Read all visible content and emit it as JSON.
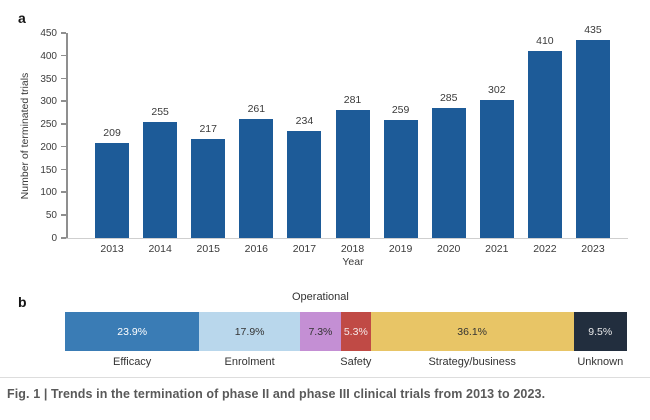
{
  "figure": {
    "panel_a_label": "a",
    "panel_b_label": "b",
    "caption": "Fig. 1 | Trends in the termination of phase II and phase III clinical trials from 2013 to 2023."
  },
  "colors": {
    "panel_a_bar": "#1d5b98",
    "axis_line": "#8f8f8f",
    "baseline": "#cfcfcf",
    "caption_text": "#595959"
  },
  "chart_data": [
    {
      "type": "bar",
      "categories": [
        "2013",
        "2014",
        "2015",
        "2016",
        "2017",
        "2018",
        "2019",
        "2020",
        "2021",
        "2022",
        "2023"
      ],
      "values": [
        209,
        255,
        217,
        261,
        234,
        281,
        259,
        285,
        302,
        410,
        435
      ],
      "title": "",
      "xlabel": "Year",
      "ylabel": "Number of terminated trials",
      "ylim": [
        0,
        450
      ],
      "ytick_step": 50,
      "grid": false,
      "bar_color": "#1d5b98"
    },
    {
      "type": "stacked-bar",
      "orientation": "horizontal",
      "total": 100,
      "segments": [
        {
          "label": "Efficacy",
          "label_position": "below",
          "value_pct": 23.9,
          "display": "23.9%",
          "color": "#3a7cb5",
          "text_color": "#ffffff"
        },
        {
          "label": "Enrolment",
          "label_position": "below",
          "value_pct": 17.9,
          "display": "17.9%",
          "color": "#b9d7ec",
          "text_color": "#333333"
        },
        {
          "label": "Operational",
          "label_position": "above",
          "value_pct": 7.3,
          "display": "7.3%",
          "color": "#c48fd4",
          "text_color": "#333333"
        },
        {
          "label": "Safety",
          "label_position": "below",
          "value_pct": 5.3,
          "display": "5.3%",
          "color": "#c04a45",
          "text_color": "#f5e9e8"
        },
        {
          "label": "Strategy/business",
          "label_position": "below",
          "value_pct": 36.1,
          "display": "36.1%",
          "color": "#e8c566",
          "text_color": "#333333"
        },
        {
          "label": "Unknown",
          "label_position": "below",
          "value_pct": 9.5,
          "display": "9.5%",
          "color": "#222e3e",
          "text_color": "#e9e9ea"
        }
      ]
    }
  ]
}
